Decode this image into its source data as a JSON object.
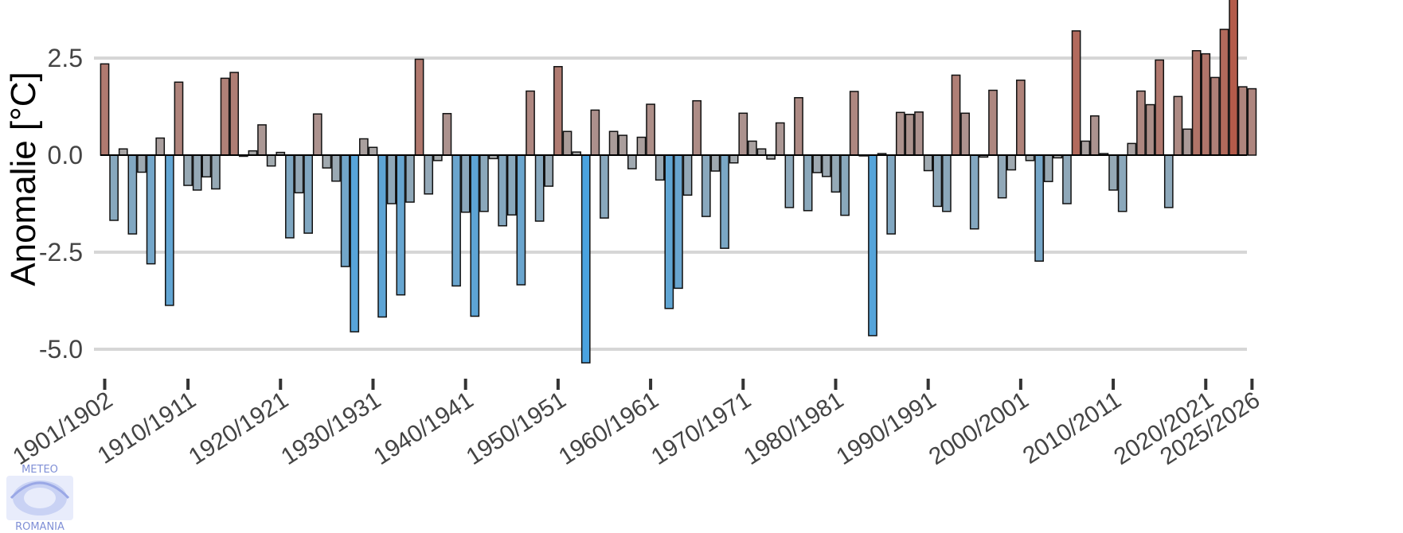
{
  "chart_data": {
    "type": "bar",
    "title": "",
    "xlabel": "",
    "ylabel": "Anomalie [°C]",
    "ylim": [
      -5.5,
      4.0
    ],
    "yticks": [
      {
        "value": 2.5,
        "label": "2.5"
      },
      {
        "value": 0.0,
        "label": "0.0"
      },
      {
        "value": -2.5,
        "label": "-2.5"
      },
      {
        "value": -5.0,
        "label": "-5.0"
      }
    ],
    "xticks": [
      {
        "index": 0,
        "label": "1901/1902"
      },
      {
        "index": 9,
        "label": "1910/1911"
      },
      {
        "index": 19,
        "label": "1920/1921"
      },
      {
        "index": 29,
        "label": "1930/1931"
      },
      {
        "index": 39,
        "label": "1940/1941"
      },
      {
        "index": 49,
        "label": "1950/1951"
      },
      {
        "index": 59,
        "label": "1960/1961"
      },
      {
        "index": 69,
        "label": "1970/1971"
      },
      {
        "index": 79,
        "label": "1980/1981"
      },
      {
        "index": 89,
        "label": "1990/1991"
      },
      {
        "index": 99,
        "label": "2000/2001"
      },
      {
        "index": 109,
        "label": "2010/2011"
      },
      {
        "index": 119,
        "label": "2020/2021"
      },
      {
        "index": 124,
        "label": "2025/2026"
      }
    ],
    "first_season_start_year": 1901,
    "colors": {
      "warm": "#b8452f",
      "cold": "#4aa3e0",
      "neutral": "#a8aaab"
    },
    "values": [
      2.35,
      -1.68,
      0.16,
      -2.03,
      -0.44,
      -2.8,
      0.44,
      -3.87,
      1.88,
      -0.78,
      -0.9,
      -0.56,
      -0.87,
      1.98,
      2.13,
      -0.03,
      0.11,
      0.78,
      -0.28,
      0.07,
      -2.13,
      -0.97,
      -2.01,
      1.06,
      -0.33,
      -0.67,
      -2.87,
      -4.55,
      0.42,
      0.2,
      -4.17,
      -1.25,
      -3.6,
      -1.21,
      2.47,
      -1.0,
      -0.14,
      1.07,
      -3.37,
      -1.47,
      -4.15,
      -1.45,
      -0.09,
      -1.82,
      -1.54,
      -3.34,
      1.65,
      -1.7,
      -0.8,
      2.28,
      0.61,
      0.08,
      -5.35,
      1.16,
      -1.62,
      0.61,
      0.51,
      -0.35,
      0.46,
      1.31,
      -0.64,
      -3.95,
      -3.43,
      -1.03,
      1.4,
      -1.58,
      -0.41,
      -2.4,
      -0.2,
      1.08,
      0.36,
      0.16,
      -0.1,
      0.83,
      -1.35,
      1.48,
      -1.43,
      -0.45,
      -0.55,
      -0.95,
      -1.55,
      1.64,
      -0.02,
      -4.65,
      0.04,
      -2.03,
      1.1,
      1.05,
      1.11,
      -0.4,
      -1.32,
      -1.45,
      2.06,
      1.08,
      -1.9,
      -0.05,
      1.67,
      -1.1,
      -0.38,
      1.93,
      -0.14,
      -2.73,
      -0.68,
      -0.07,
      -1.25,
      3.2,
      0.36,
      1.01,
      0.04,
      -0.9,
      -1.45,
      0.3,
      1.65,
      1.3,
      2.45,
      -1.35,
      1.51,
      0.67,
      2.69,
      2.61,
      2.0,
      3.24,
      4.05,
      1.76,
      1.71
    ]
  },
  "logo": {
    "line1": "METEO",
    "line2": "ROMANIA"
  }
}
